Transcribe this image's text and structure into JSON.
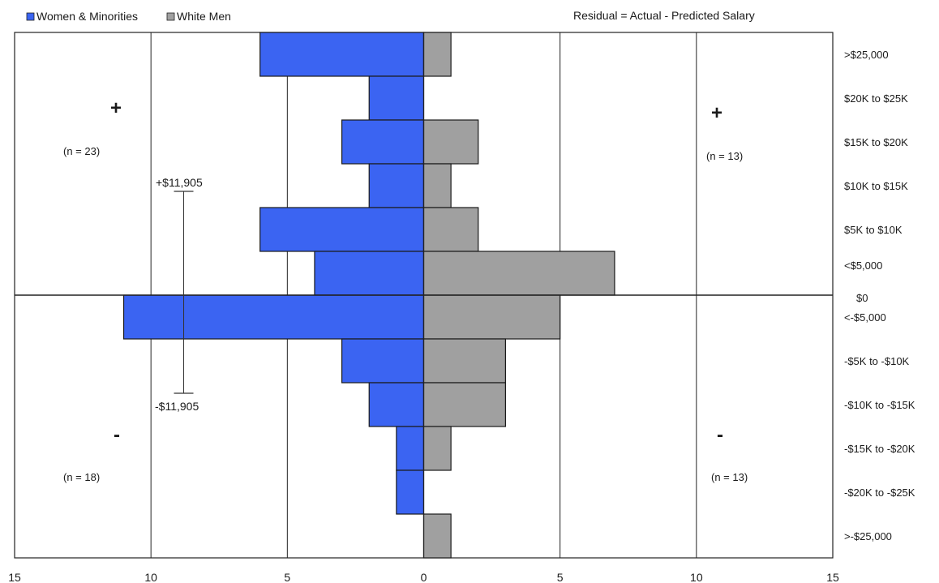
{
  "chart_data": {
    "type": "bar",
    "orientation": "horizontal",
    "title": "",
    "subtitle": "Residual = Actual - Predicted Salary",
    "categories": [
      ">$25,000",
      "$20K to $25K",
      "$15K to $20K",
      "$10K to $15K",
      "$5K to $10K",
      "<$5,000",
      "<-$5,000",
      "-$5K to -$10K",
      "-$10K to -$15K",
      "-$15K to -$20K",
      "-$20K to -$25K",
      ">-$25,000"
    ],
    "zero_label": "$0",
    "series": [
      {
        "name": "Women & Minorities",
        "color": "#3b64f2",
        "direction": "left",
        "values": [
          6,
          2,
          3,
          2,
          6,
          4,
          11,
          3,
          2,
          1,
          1,
          0
        ]
      },
      {
        "name": "White Men",
        "color": "#a0a0a0",
        "direction": "right",
        "values": [
          1,
          0,
          2,
          1,
          2,
          7,
          5,
          3,
          3,
          1,
          0,
          1
        ]
      }
    ],
    "x_ticks": [
      "15",
      "10",
      "5",
      "0",
      "5",
      "10",
      "15"
    ],
    "xlim": [
      -15,
      15
    ],
    "legend_position": "top-left",
    "grid": true,
    "annotations": {
      "plus_symbol": "+",
      "minus_symbol": "-",
      "left_upper_n": "(n = 23)",
      "right_upper_n": "(n = 13)",
      "left_lower_n": "(n = 18)",
      "right_lower_n": "(n = 13)",
      "error_bar": {
        "x": -8.8,
        "upper_label": "+$11,905",
        "lower_label": "-$11,905"
      }
    }
  }
}
